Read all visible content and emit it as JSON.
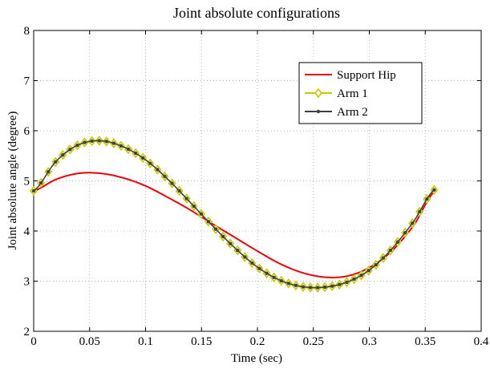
{
  "chart_data": {
    "type": "line",
    "title": "Joint absolute configurations",
    "xlabel": "Time (sec)",
    "ylabel": "Joint absolute angle (degree)",
    "xlim": [
      0,
      0.4
    ],
    "ylim": [
      2,
      8
    ],
    "xticks": [
      0,
      0.05,
      0.1,
      0.15,
      0.2,
      0.25,
      0.3,
      0.35,
      0.4
    ],
    "xtick_labels": [
      "0",
      "0.05",
      "0.1",
      "0.15",
      "0.2",
      "0.25",
      "0.3",
      "0.35",
      "0.4"
    ],
    "yticks": [
      2,
      3,
      4,
      5,
      6,
      7,
      8
    ],
    "ytick_labels": [
      "2",
      "3",
      "4",
      "5",
      "6",
      "7",
      "8"
    ],
    "grid": true,
    "legend_position": "top-right",
    "series": [
      {
        "name": "Support Hip",
        "color": "#e8000b",
        "marker": "none",
        "x": [
          0,
          0.02,
          0.04,
          0.06,
          0.08,
          0.1,
          0.12,
          0.14,
          0.16,
          0.18,
          0.2,
          0.22,
          0.24,
          0.26,
          0.28,
          0.3,
          0.32,
          0.34,
          0.358
        ],
        "y": [
          4.8,
          5.03,
          5.15,
          5.15,
          5.06,
          4.9,
          4.67,
          4.42,
          4.14,
          3.87,
          3.6,
          3.35,
          3.17,
          3.08,
          3.1,
          3.27,
          3.6,
          4.12,
          4.78
        ]
      },
      {
        "name": "Arm 1",
        "color": "#c8c800",
        "marker": "diamond",
        "x": [
          0,
          0.02,
          0.04,
          0.06,
          0.08,
          0.1,
          0.12,
          0.14,
          0.16,
          0.18,
          0.2,
          0.22,
          0.24,
          0.26,
          0.28,
          0.3,
          0.32,
          0.34,
          0.358
        ],
        "y": [
          4.8,
          5.39,
          5.72,
          5.8,
          5.68,
          5.42,
          5.03,
          4.57,
          4.1,
          3.66,
          3.28,
          3.02,
          2.89,
          2.88,
          2.98,
          3.22,
          3.64,
          4.2,
          4.82
        ]
      },
      {
        "name": "Arm 2",
        "color": "#404040",
        "marker": "dot",
        "x": [
          0,
          0.02,
          0.04,
          0.06,
          0.08,
          0.1,
          0.12,
          0.14,
          0.16,
          0.18,
          0.2,
          0.22,
          0.24,
          0.26,
          0.28,
          0.3,
          0.32,
          0.34,
          0.358
        ],
        "y": [
          4.8,
          5.39,
          5.72,
          5.8,
          5.68,
          5.42,
          5.03,
          4.57,
          4.1,
          3.66,
          3.28,
          3.02,
          2.89,
          2.88,
          2.98,
          3.22,
          3.64,
          4.2,
          4.82
        ]
      }
    ]
  }
}
